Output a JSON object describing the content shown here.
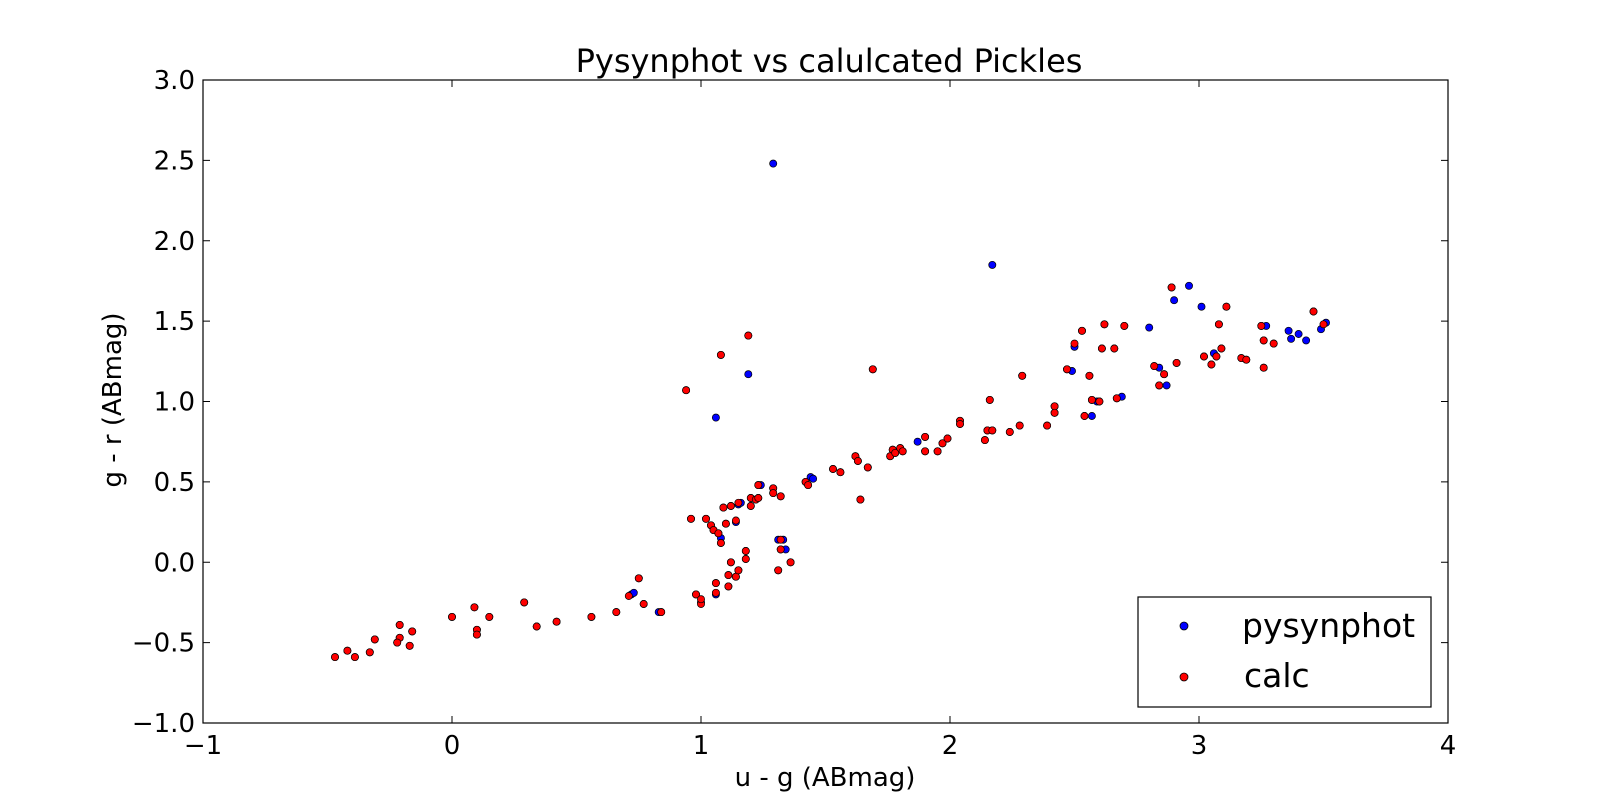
{
  "chart_data": {
    "type": "scatter",
    "title": "Pysynphot vs calulcated Pickles",
    "xlabel": "u - g (ABmag)",
    "ylabel": "g - r (ABmag)",
    "xlim": [
      -1,
      4
    ],
    "ylim": [
      -1.0,
      3.0
    ],
    "xticks": [
      -1,
      0,
      1,
      2,
      3,
      4
    ],
    "xtick_labels": [
      "−1",
      "0",
      "1",
      "2",
      "3",
      "4"
    ],
    "yticks": [
      -1.0,
      -0.5,
      0.0,
      0.5,
      1.0,
      1.5,
      2.0,
      2.5,
      3.0
    ],
    "ytick_labels": [
      "−1.0",
      "−0.5",
      "0.0",
      "0.5",
      "1.0",
      "1.5",
      "2.0",
      "2.5",
      "3.0"
    ],
    "grid": false,
    "legend_position": "lower-right",
    "colors": {
      "pysynphot": "#0000ff",
      "calc": "#ff0000"
    },
    "series": [
      {
        "name": "pysynphot",
        "color": "#0000ff",
        "points": [
          [
            -0.47,
            -0.59
          ],
          [
            -0.42,
            -0.55
          ],
          [
            -0.39,
            -0.59
          ],
          [
            -0.33,
            -0.56
          ],
          [
            -0.31,
            -0.48
          ],
          [
            -0.21,
            -0.39
          ],
          [
            -0.21,
            -0.47
          ],
          [
            -0.22,
            -0.5
          ],
          [
            -0.17,
            -0.52
          ],
          [
            -0.16,
            -0.43
          ],
          [
            0.0,
            -0.34
          ],
          [
            0.09,
            -0.28
          ],
          [
            0.1,
            -0.42
          ],
          [
            0.1,
            -0.45
          ],
          [
            0.15,
            -0.34
          ],
          [
            0.29,
            -0.25
          ],
          [
            0.34,
            -0.4
          ],
          [
            0.42,
            -0.37
          ],
          [
            0.56,
            -0.34
          ],
          [
            0.66,
            -0.31
          ],
          [
            0.72,
            -0.2
          ],
          [
            0.73,
            -0.19
          ],
          [
            0.75,
            -0.1
          ],
          [
            0.77,
            -0.26
          ],
          [
            0.83,
            -0.31
          ],
          [
            0.84,
            -0.31
          ],
          [
            0.94,
            1.07
          ],
          [
            0.96,
            0.27
          ],
          [
            0.98,
            -0.2
          ],
          [
            1.0,
            -0.25
          ],
          [
            1.02,
            0.27
          ],
          [
            1.04,
            0.23
          ],
          [
            1.05,
            0.2
          ],
          [
            1.06,
            0.9
          ],
          [
            1.06,
            -0.2
          ],
          [
            1.06,
            -0.13
          ],
          [
            1.07,
            0.18
          ],
          [
            1.08,
            0.15
          ],
          [
            1.08,
            0.12
          ],
          [
            1.08,
            1.29
          ],
          [
            1.09,
            0.34
          ],
          [
            1.1,
            0.24
          ],
          [
            1.11,
            -0.15
          ],
          [
            1.11,
            -0.08
          ],
          [
            1.12,
            0.35
          ],
          [
            1.12,
            0.0
          ],
          [
            1.14,
            0.25
          ],
          [
            1.14,
            -0.09
          ],
          [
            1.15,
            0.36
          ],
          [
            1.15,
            -0.05
          ],
          [
            1.16,
            0.37
          ],
          [
            1.18,
            0.02
          ],
          [
            1.18,
            0.07
          ],
          [
            1.19,
            1.17
          ],
          [
            1.19,
            1.41
          ],
          [
            1.2,
            0.4
          ],
          [
            1.2,
            0.35
          ],
          [
            1.22,
            0.39
          ],
          [
            1.23,
            0.4
          ],
          [
            1.23,
            0.48
          ],
          [
            1.24,
            0.48
          ],
          [
            1.29,
            2.48
          ],
          [
            1.29,
            0.46
          ],
          [
            1.29,
            0.43
          ],
          [
            1.31,
            -0.05
          ],
          [
            1.31,
            0.14
          ],
          [
            1.32,
            0.08
          ],
          [
            1.32,
            0.41
          ],
          [
            1.33,
            0.14
          ],
          [
            1.34,
            0.08
          ],
          [
            1.36,
            0.0
          ],
          [
            1.42,
            0.5
          ],
          [
            1.43,
            0.48
          ],
          [
            1.44,
            0.53
          ],
          [
            1.45,
            0.52
          ],
          [
            1.53,
            0.58
          ],
          [
            1.56,
            0.56
          ],
          [
            1.62,
            0.66
          ],
          [
            1.63,
            0.63
          ],
          [
            1.64,
            0.39
          ],
          [
            1.67,
            0.59
          ],
          [
            1.69,
            1.2
          ],
          [
            1.76,
            0.66
          ],
          [
            1.77,
            0.7
          ],
          [
            1.78,
            0.68
          ],
          [
            1.8,
            0.71
          ],
          [
            1.81,
            0.69
          ],
          [
            1.87,
            0.75
          ],
          [
            1.9,
            0.78
          ],
          [
            1.9,
            0.69
          ],
          [
            1.95,
            0.69
          ],
          [
            1.97,
            0.74
          ],
          [
            1.99,
            0.77
          ],
          [
            2.04,
            0.88
          ],
          [
            2.04,
            0.86
          ],
          [
            2.14,
            0.76
          ],
          [
            2.15,
            0.82
          ],
          [
            2.16,
            1.01
          ],
          [
            2.17,
            1.85
          ],
          [
            2.17,
            0.82
          ],
          [
            2.24,
            0.81
          ],
          [
            2.28,
            0.85
          ],
          [
            2.29,
            1.16
          ],
          [
            2.39,
            0.85
          ],
          [
            2.42,
            0.97
          ],
          [
            2.42,
            0.93
          ],
          [
            2.47,
            1.2
          ],
          [
            2.49,
            1.19
          ],
          [
            2.5,
            1.34
          ],
          [
            2.53,
            1.44
          ],
          [
            2.54,
            0.91
          ],
          [
            2.56,
            1.16
          ],
          [
            2.57,
            0.91
          ],
          [
            2.57,
            1.01
          ],
          [
            2.59,
            1.0
          ],
          [
            2.6,
            1.0
          ],
          [
            2.61,
            1.33
          ],
          [
            2.62,
            1.48
          ],
          [
            2.66,
            1.33
          ],
          [
            2.67,
            1.02
          ],
          [
            2.69,
            1.03
          ],
          [
            2.7,
            1.47
          ],
          [
            2.8,
            1.46
          ],
          [
            2.82,
            1.22
          ],
          [
            2.84,
            1.21
          ],
          [
            2.84,
            1.1
          ],
          [
            2.86,
            1.17
          ],
          [
            2.87,
            1.1
          ],
          [
            2.89,
            1.71
          ],
          [
            2.9,
            1.63
          ],
          [
            2.91,
            1.24
          ],
          [
            2.96,
            1.72
          ],
          [
            3.01,
            1.59
          ],
          [
            3.02,
            1.28
          ],
          [
            3.05,
            1.23
          ],
          [
            3.06,
            1.3
          ],
          [
            3.07,
            1.28
          ],
          [
            3.08,
            1.48
          ],
          [
            3.09,
            1.33
          ],
          [
            3.11,
            1.59
          ],
          [
            3.17,
            1.27
          ],
          [
            3.19,
            1.26
          ],
          [
            3.25,
            1.47
          ],
          [
            3.26,
            1.21
          ],
          [
            3.26,
            1.38
          ],
          [
            3.27,
            1.47
          ],
          [
            3.3,
            1.36
          ],
          [
            3.36,
            1.44
          ],
          [
            3.37,
            1.39
          ],
          [
            3.4,
            1.42
          ],
          [
            3.43,
            1.38
          ],
          [
            3.46,
            1.56
          ],
          [
            3.49,
            1.45
          ],
          [
            3.51,
            1.49
          ]
        ]
      },
      {
        "name": "calc",
        "color": "#ff0000",
        "points": [
          [
            -0.47,
            -0.59
          ],
          [
            -0.42,
            -0.55
          ],
          [
            -0.39,
            -0.59
          ],
          [
            -0.33,
            -0.56
          ],
          [
            -0.31,
            -0.48
          ],
          [
            -0.21,
            -0.39
          ],
          [
            -0.21,
            -0.47
          ],
          [
            -0.22,
            -0.5
          ],
          [
            -0.17,
            -0.52
          ],
          [
            -0.16,
            -0.43
          ],
          [
            0.0,
            -0.34
          ],
          [
            0.09,
            -0.28
          ],
          [
            0.1,
            -0.42
          ],
          [
            0.1,
            -0.45
          ],
          [
            0.15,
            -0.34
          ],
          [
            0.29,
            -0.25
          ],
          [
            0.34,
            -0.4
          ],
          [
            0.42,
            -0.37
          ],
          [
            0.56,
            -0.34
          ],
          [
            0.66,
            -0.31
          ],
          [
            0.71,
            -0.21
          ],
          [
            0.75,
            -0.1
          ],
          [
            0.77,
            -0.26
          ],
          [
            0.84,
            -0.31
          ],
          [
            0.94,
            1.07
          ],
          [
            0.96,
            0.27
          ],
          [
            0.98,
            -0.2
          ],
          [
            1.0,
            -0.26
          ],
          [
            1.0,
            -0.23
          ],
          [
            1.02,
            0.27
          ],
          [
            1.04,
            0.23
          ],
          [
            1.05,
            0.2
          ],
          [
            1.06,
            -0.19
          ],
          [
            1.06,
            -0.13
          ],
          [
            1.07,
            0.18
          ],
          [
            1.08,
            0.12
          ],
          [
            1.08,
            1.29
          ],
          [
            1.09,
            0.34
          ],
          [
            1.1,
            0.24
          ],
          [
            1.11,
            -0.15
          ],
          [
            1.11,
            -0.08
          ],
          [
            1.12,
            0.35
          ],
          [
            1.12,
            0.0
          ],
          [
            1.14,
            0.26
          ],
          [
            1.14,
            -0.09
          ],
          [
            1.15,
            0.37
          ],
          [
            1.15,
            -0.05
          ],
          [
            1.18,
            0.02
          ],
          [
            1.18,
            0.07
          ],
          [
            1.19,
            1.41
          ],
          [
            1.2,
            0.4
          ],
          [
            1.2,
            0.35
          ],
          [
            1.22,
            0.39
          ],
          [
            1.23,
            0.4
          ],
          [
            1.23,
            0.48
          ],
          [
            1.29,
            0.46
          ],
          [
            1.29,
            0.43
          ],
          [
            1.31,
            -0.05
          ],
          [
            1.32,
            0.14
          ],
          [
            1.32,
            0.08
          ],
          [
            1.32,
            0.41
          ],
          [
            1.36,
            0.0
          ],
          [
            1.42,
            0.5
          ],
          [
            1.43,
            0.48
          ],
          [
            1.53,
            0.58
          ],
          [
            1.56,
            0.56
          ],
          [
            1.62,
            0.66
          ],
          [
            1.63,
            0.63
          ],
          [
            1.64,
            0.39
          ],
          [
            1.67,
            0.59
          ],
          [
            1.69,
            1.2
          ],
          [
            1.76,
            0.66
          ],
          [
            1.77,
            0.7
          ],
          [
            1.78,
            0.68
          ],
          [
            1.8,
            0.71
          ],
          [
            1.81,
            0.69
          ],
          [
            1.9,
            0.78
          ],
          [
            1.9,
            0.69
          ],
          [
            1.95,
            0.69
          ],
          [
            1.97,
            0.74
          ],
          [
            1.99,
            0.77
          ],
          [
            2.04,
            0.88
          ],
          [
            2.04,
            0.86
          ],
          [
            2.14,
            0.76
          ],
          [
            2.15,
            0.82
          ],
          [
            2.16,
            1.01
          ],
          [
            2.17,
            0.82
          ],
          [
            2.24,
            0.81
          ],
          [
            2.28,
            0.85
          ],
          [
            2.29,
            1.16
          ],
          [
            2.39,
            0.85
          ],
          [
            2.42,
            0.97
          ],
          [
            2.42,
            0.93
          ],
          [
            2.47,
            1.2
          ],
          [
            2.5,
            1.36
          ],
          [
            2.53,
            1.44
          ],
          [
            2.54,
            0.91
          ],
          [
            2.56,
            1.16
          ],
          [
            2.57,
            1.01
          ],
          [
            2.6,
            1.0
          ],
          [
            2.61,
            1.33
          ],
          [
            2.62,
            1.48
          ],
          [
            2.66,
            1.33
          ],
          [
            2.67,
            1.02
          ],
          [
            2.7,
            1.47
          ],
          [
            2.82,
            1.22
          ],
          [
            2.84,
            1.1
          ],
          [
            2.86,
            1.17
          ],
          [
            2.89,
            1.71
          ],
          [
            2.91,
            1.24
          ],
          [
            3.02,
            1.28
          ],
          [
            3.05,
            1.23
          ],
          [
            3.07,
            1.28
          ],
          [
            3.08,
            1.48
          ],
          [
            3.09,
            1.33
          ],
          [
            3.11,
            1.59
          ],
          [
            3.17,
            1.27
          ],
          [
            3.19,
            1.26
          ],
          [
            3.25,
            1.47
          ],
          [
            3.26,
            1.21
          ],
          [
            3.26,
            1.38
          ],
          [
            3.3,
            1.36
          ],
          [
            3.46,
            1.56
          ],
          [
            3.5,
            1.48
          ]
        ]
      }
    ]
  }
}
